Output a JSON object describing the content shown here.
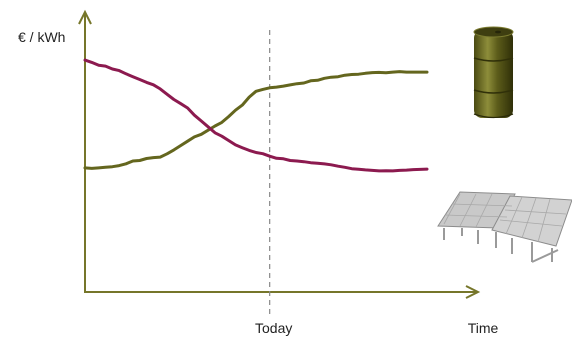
{
  "chart_data": {
    "type": "line",
    "ylabel": "€ / kWh",
    "xlabel": "Time",
    "marker_label": "Today",
    "x": [
      0,
      0.02,
      0.04,
      0.06,
      0.08,
      0.1,
      0.12,
      0.14,
      0.16,
      0.18,
      0.2,
      0.22,
      0.24,
      0.26,
      0.28,
      0.3,
      0.32,
      0.34,
      0.36,
      0.38,
      0.4,
      0.42,
      0.44,
      0.46,
      0.48,
      0.5,
      0.52,
      0.54,
      0.56,
      0.58,
      0.6,
      0.62,
      0.64,
      0.66,
      0.68,
      0.7,
      0.72,
      0.74,
      0.76,
      0.78,
      0.8,
      0.82,
      0.84,
      0.86,
      0.88,
      0.9,
      0.92,
      0.94,
      0.96,
      0.98,
      1.0
    ],
    "today_x": 0.54,
    "xlim": [
      0,
      1
    ],
    "ylim": [
      0,
      1
    ],
    "series": [
      {
        "icon": "oil-barrel-icon",
        "color": "#64661e",
        "values": [
          0.34,
          0.337,
          0.34,
          0.343,
          0.347,
          0.353,
          0.364,
          0.38,
          0.383,
          0.395,
          0.4,
          0.403,
          0.422,
          0.445,
          0.471,
          0.496,
          0.521,
          0.536,
          0.56,
          0.585,
          0.606,
          0.64,
          0.677,
          0.707,
          0.754,
          0.788,
          0.799,
          0.808,
          0.812,
          0.818,
          0.825,
          0.832,
          0.836,
          0.849,
          0.852,
          0.864,
          0.87,
          0.873,
          0.882,
          0.886,
          0.888,
          0.893,
          0.897,
          0.898,
          0.896,
          0.9,
          0.903,
          0.9,
          0.9,
          0.9,
          0.9
        ]
      },
      {
        "icon": "solar-panel-icon",
        "color": "#8c1a4f",
        "values": [
          0.97,
          0.957,
          0.94,
          0.935,
          0.918,
          0.909,
          0.89,
          0.873,
          0.857,
          0.84,
          0.826,
          0.802,
          0.77,
          0.74,
          0.715,
          0.69,
          0.648,
          0.614,
          0.58,
          0.545,
          0.525,
          0.5,
          0.474,
          0.458,
          0.442,
          0.43,
          0.423,
          0.408,
          0.396,
          0.393,
          0.383,
          0.38,
          0.376,
          0.37,
          0.367,
          0.363,
          0.358,
          0.35,
          0.343,
          0.335,
          0.332,
          0.328,
          0.325,
          0.322,
          0.323,
          0.322,
          0.325,
          0.327,
          0.33,
          0.331,
          0.333
        ]
      }
    ],
    "legend": "icons at right end of lines",
    "grid": false
  }
}
